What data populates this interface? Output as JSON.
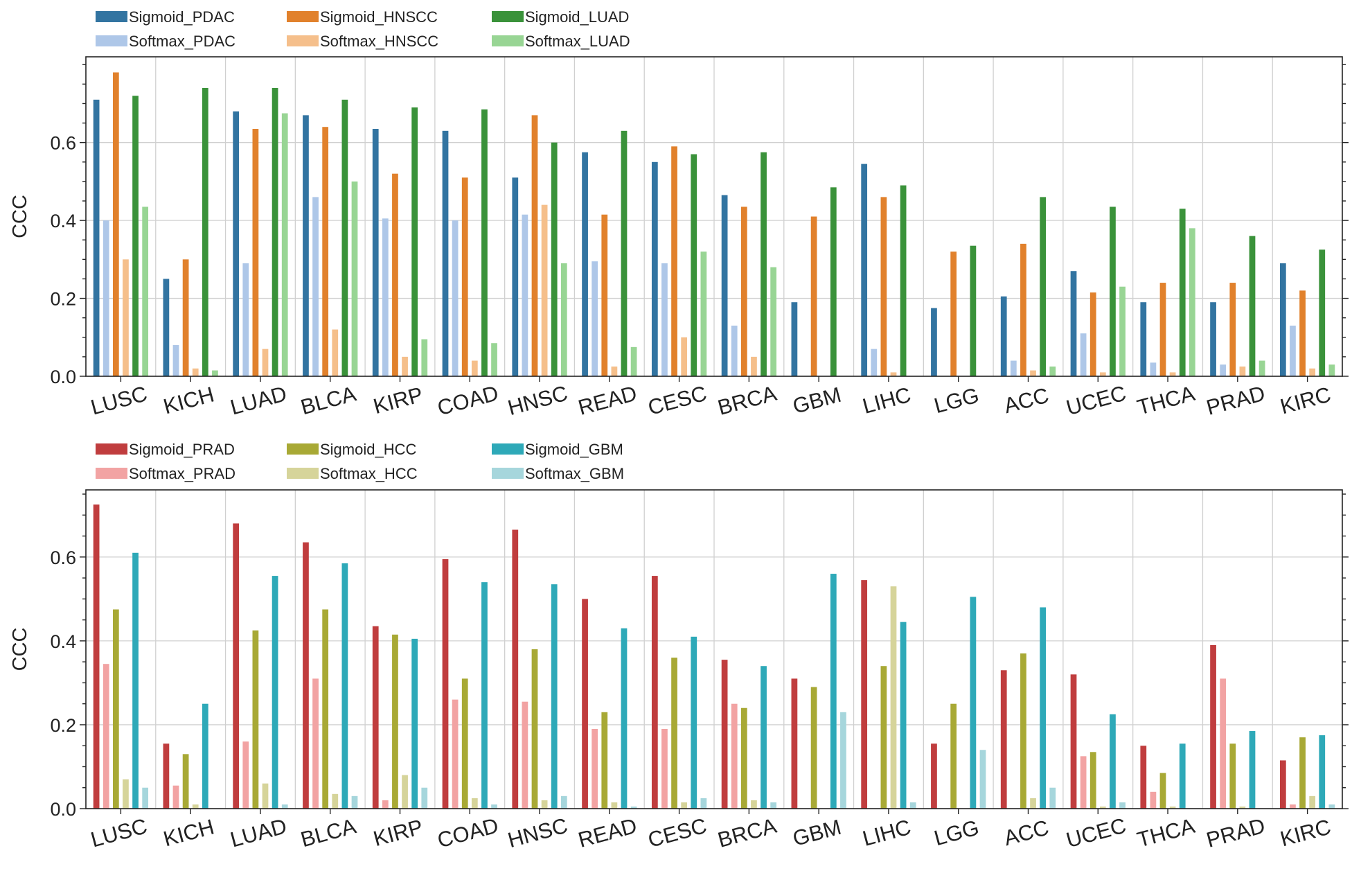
{
  "chart_data": [
    {
      "type": "bar",
      "title": "",
      "xlabel": "",
      "ylabel": "CCC",
      "ylim": [
        0,
        0.82
      ],
      "yticks": [
        0.0,
        0.2,
        0.4,
        0.6
      ],
      "ytick_labels": [
        "0.0",
        "0.2",
        "0.4",
        "0.6"
      ],
      "grid": true,
      "legend_position": "top-left, above plot",
      "categories": [
        "LUSC",
        "KICH",
        "LUAD",
        "BLCA",
        "KIRP",
        "COAD",
        "HNSC",
        "READ",
        "CESC",
        "BRCA",
        "GBM",
        "LIHC",
        "LGG",
        "ACC",
        "UCEC",
        "THCA",
        "PRAD",
        "KIRC"
      ],
      "series": [
        {
          "name": "Sigmoid_PDAC",
          "color": "#3274a1",
          "values": [
            0.71,
            0.25,
            0.68,
            0.67,
            0.635,
            0.63,
            0.51,
            0.575,
            0.55,
            0.465,
            0.19,
            0.545,
            0.175,
            0.205,
            0.27,
            0.19,
            0.19,
            0.29
          ]
        },
        {
          "name": "Softmax_PDAC",
          "color": "#aec7e8",
          "values": [
            0.4,
            0.08,
            0.29,
            0.46,
            0.405,
            0.4,
            0.415,
            0.295,
            0.29,
            0.13,
            0.0,
            0.07,
            0.0,
            0.04,
            0.11,
            0.035,
            0.03,
            0.13
          ]
        },
        {
          "name": "Sigmoid_HNSCC",
          "color": "#e1812c",
          "values": [
            0.78,
            0.3,
            0.635,
            0.64,
            0.52,
            0.51,
            0.67,
            0.415,
            0.59,
            0.435,
            0.41,
            0.46,
            0.32,
            0.34,
            0.215,
            0.24,
            0.24,
            0.22
          ]
        },
        {
          "name": "Softmax_HNSCC",
          "color": "#f5bf8b",
          "values": [
            0.3,
            0.02,
            0.07,
            0.12,
            0.05,
            0.04,
            0.44,
            0.025,
            0.1,
            0.05,
            0.0,
            0.01,
            0.0,
            0.015,
            0.01,
            0.01,
            0.025,
            0.02
          ]
        },
        {
          "name": "Sigmoid_LUAD",
          "color": "#3a923a",
          "values": [
            0.72,
            0.74,
            0.74,
            0.71,
            0.69,
            0.685,
            0.6,
            0.63,
            0.57,
            0.575,
            0.485,
            0.49,
            0.335,
            0.46,
            0.435,
            0.43,
            0.36,
            0.325
          ]
        },
        {
          "name": "Softmax_LUAD",
          "color": "#98d594",
          "values": [
            0.435,
            0.015,
            0.675,
            0.5,
            0.095,
            0.085,
            0.29,
            0.075,
            0.32,
            0.28,
            0.0,
            0.0,
            0.0,
            0.025,
            0.23,
            0.38,
            0.04,
            0.03
          ]
        }
      ]
    },
    {
      "type": "bar",
      "title": "",
      "xlabel": "",
      "ylabel": "CCC",
      "ylim": [
        0,
        0.76
      ],
      "yticks": [
        0.0,
        0.2,
        0.4,
        0.6
      ],
      "ytick_labels": [
        "0.0",
        "0.2",
        "0.4",
        "0.6"
      ],
      "grid": true,
      "legend_position": "top-left, above plot",
      "categories": [
        "LUSC",
        "KICH",
        "LUAD",
        "BLCA",
        "KIRP",
        "COAD",
        "HNSC",
        "READ",
        "CESC",
        "BRCA",
        "GBM",
        "LIHC",
        "LGG",
        "ACC",
        "UCEC",
        "THCA",
        "PRAD",
        "KIRC"
      ],
      "series": [
        {
          "name": "Sigmoid_PRAD",
          "color": "#c03d3e",
          "values": [
            0.725,
            0.155,
            0.68,
            0.635,
            0.435,
            0.595,
            0.665,
            0.5,
            0.555,
            0.355,
            0.31,
            0.545,
            0.155,
            0.33,
            0.32,
            0.15,
            0.39,
            0.115
          ]
        },
        {
          "name": "Softmax_PRAD",
          "color": "#f2a3a3",
          "values": [
            0.345,
            0.055,
            0.16,
            0.31,
            0.02,
            0.26,
            0.255,
            0.19,
            0.19,
            0.25,
            0.0,
            0.0,
            0.0,
            0.0,
            0.125,
            0.04,
            0.31,
            0.01
          ]
        },
        {
          "name": "Sigmoid_HCC",
          "color": "#a8a935",
          "values": [
            0.475,
            0.13,
            0.425,
            0.475,
            0.415,
            0.31,
            0.38,
            0.23,
            0.36,
            0.24,
            0.29,
            0.34,
            0.25,
            0.37,
            0.135,
            0.085,
            0.155,
            0.17
          ]
        },
        {
          "name": "Softmax_HCC",
          "color": "#d6d49a",
          "values": [
            0.07,
            0.01,
            0.06,
            0.035,
            0.08,
            0.025,
            0.02,
            0.015,
            0.015,
            0.02,
            0.0,
            0.53,
            0.0,
            0.025,
            0.005,
            0.005,
            0.005,
            0.03
          ]
        },
        {
          "name": "Sigmoid_GBM",
          "color": "#2ea9b8",
          "values": [
            0.61,
            0.25,
            0.555,
            0.585,
            0.405,
            0.54,
            0.535,
            0.43,
            0.41,
            0.34,
            0.56,
            0.445,
            0.505,
            0.48,
            0.225,
            0.155,
            0.185,
            0.175
          ]
        },
        {
          "name": "Softmax_GBM",
          "color": "#a6d6dc",
          "values": [
            0.05,
            0.0,
            0.01,
            0.03,
            0.05,
            0.01,
            0.03,
            0.005,
            0.025,
            0.015,
            0.23,
            0.015,
            0.14,
            0.05,
            0.015,
            0.0,
            0.0,
            0.01
          ]
        }
      ]
    }
  ]
}
